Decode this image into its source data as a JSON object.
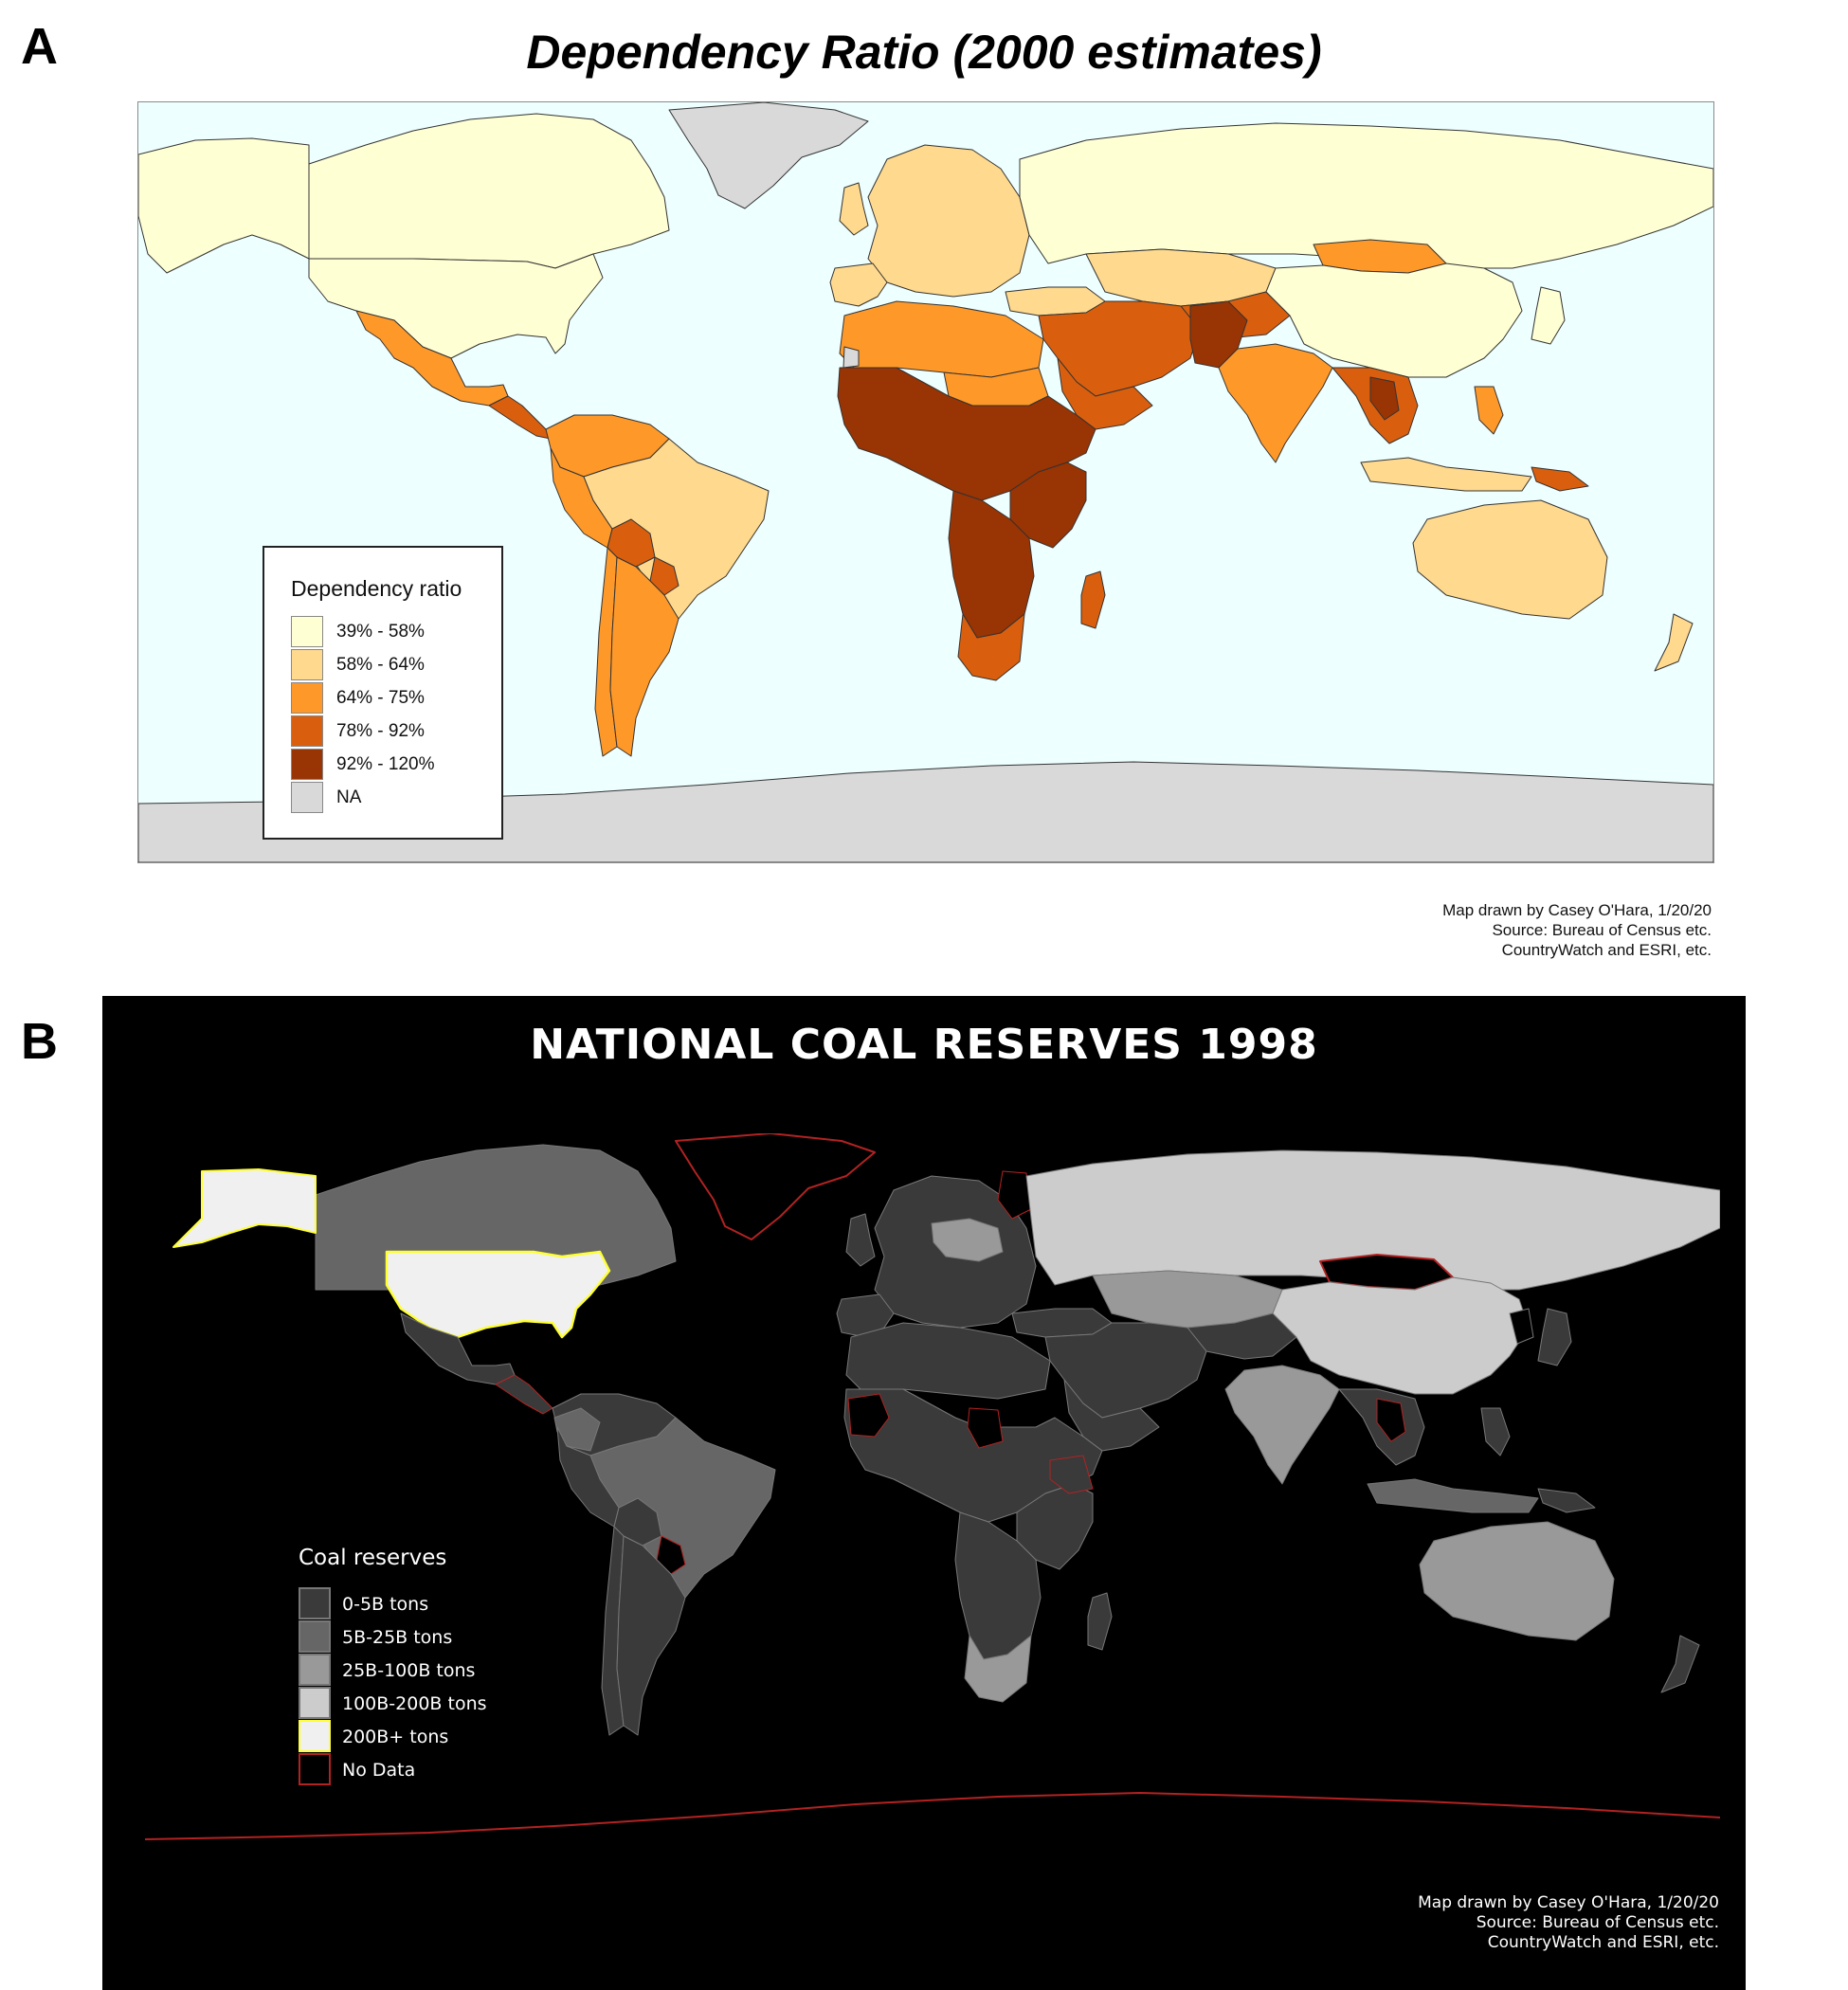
{
  "panel_a": {
    "panel_label": "A",
    "title": "Dependency Ratio (2000 estimates)",
    "legend": {
      "title": "Dependency ratio",
      "items": [
        {
          "label": "39% - 58%",
          "color": "#ffffd4"
        },
        {
          "label": "58% - 64%",
          "color": "#fed98e"
        },
        {
          "label": "64% - 75%",
          "color": "#fe9929"
        },
        {
          "label": "78% - 92%",
          "color": "#d95f0e"
        },
        {
          "label": "92% - 120%",
          "color": "#993404"
        },
        {
          "label": "NA",
          "color": "#d9d9d9"
        }
      ]
    },
    "credit": [
      "Map drawn by Casey O'Hara, 1/20/20",
      "Source: Bureau of Census etc.",
      "CountryWatch and ESRI, etc."
    ],
    "ocean_color": "#eeffff",
    "border_color": "#333333"
  },
  "panel_b": {
    "panel_label": "B",
    "title": "NATIONAL COAL RESERVES 1998",
    "legend": {
      "title": "Coal reserves",
      "items": [
        {
          "label": "0-5B tons",
          "color": "#3a3a3a",
          "outline": "#777777"
        },
        {
          "label": "5B-25B tons",
          "color": "#666666",
          "outline": "#777777"
        },
        {
          "label": "25B-100B tons",
          "color": "#999999",
          "outline": "#777777"
        },
        {
          "label": "100B-200B tons",
          "color": "#cccccc",
          "outline": "#777777"
        },
        {
          "label": "200B+ tons",
          "color": "#f0f0f0",
          "outline": "#ffff33"
        },
        {
          "label": "No Data",
          "color": "#000000",
          "outline": "#b22222"
        }
      ]
    },
    "credit": [
      "Map drawn by Casey O'Hara, 1/20/20",
      "Source: Bureau of Census etc.",
      "CountryWatch and ESRI, etc."
    ],
    "background_color": "#000000",
    "border_color": "#777777"
  }
}
